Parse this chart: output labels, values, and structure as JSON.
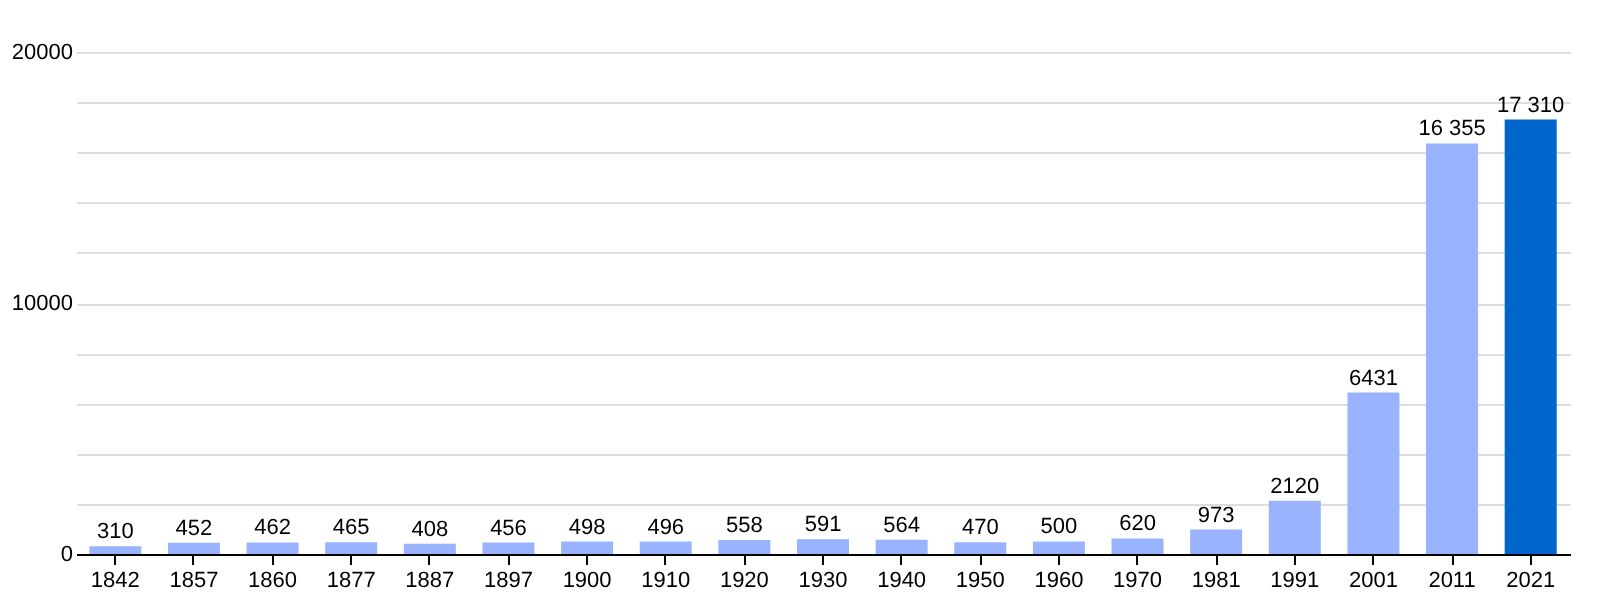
{
  "chart_data": {
    "type": "bar",
    "categories": [
      "1842",
      "1857",
      "1860",
      "1877",
      "1887",
      "1897",
      "1900",
      "1910",
      "1920",
      "1930",
      "1940",
      "1950",
      "1960",
      "1970",
      "1981",
      "1991",
      "2001",
      "2011",
      "2021"
    ],
    "values": [
      310,
      452,
      462,
      465,
      408,
      456,
      498,
      496,
      558,
      591,
      564,
      470,
      500,
      620,
      973,
      2120,
      6431,
      16355,
      17310
    ],
    "colors": [
      "#99b3ff",
      "#99b3ff",
      "#99b3ff",
      "#99b3ff",
      "#99b3ff",
      "#99b3ff",
      "#99b3ff",
      "#99b3ff",
      "#99b3ff",
      "#99b3ff",
      "#99b3ff",
      "#99b3ff",
      "#99b3ff",
      "#99b3ff",
      "#99b3ff",
      "#99b3ff",
      "#99b3ff",
      "#99b3ff",
      "#0066cc"
    ],
    "value_labels": [
      "310",
      "452",
      "462",
      "465",
      "408",
      "456",
      "498",
      "496",
      "558",
      "591",
      "564",
      "470",
      "500",
      "620",
      "973",
      "2120",
      "6431",
      "16 355",
      "17 310"
    ],
    "ylim": [
      0,
      20000
    ],
    "yticks": [
      0,
      {
        "value": 2000,
        "label": null
      },
      {
        "value": 4000,
        "label": null
      },
      {
        "value": 6000,
        "label": null
      },
      {
        "value": 8000,
        "label": null
      },
      10000,
      {
        "value": 12000,
        "label": null
      },
      {
        "value": 14000,
        "label": null
      },
      {
        "value": 16000,
        "label": null
      },
      {
        "value": 18000,
        "label": null
      },
      20000
    ],
    "grid": "y"
  }
}
